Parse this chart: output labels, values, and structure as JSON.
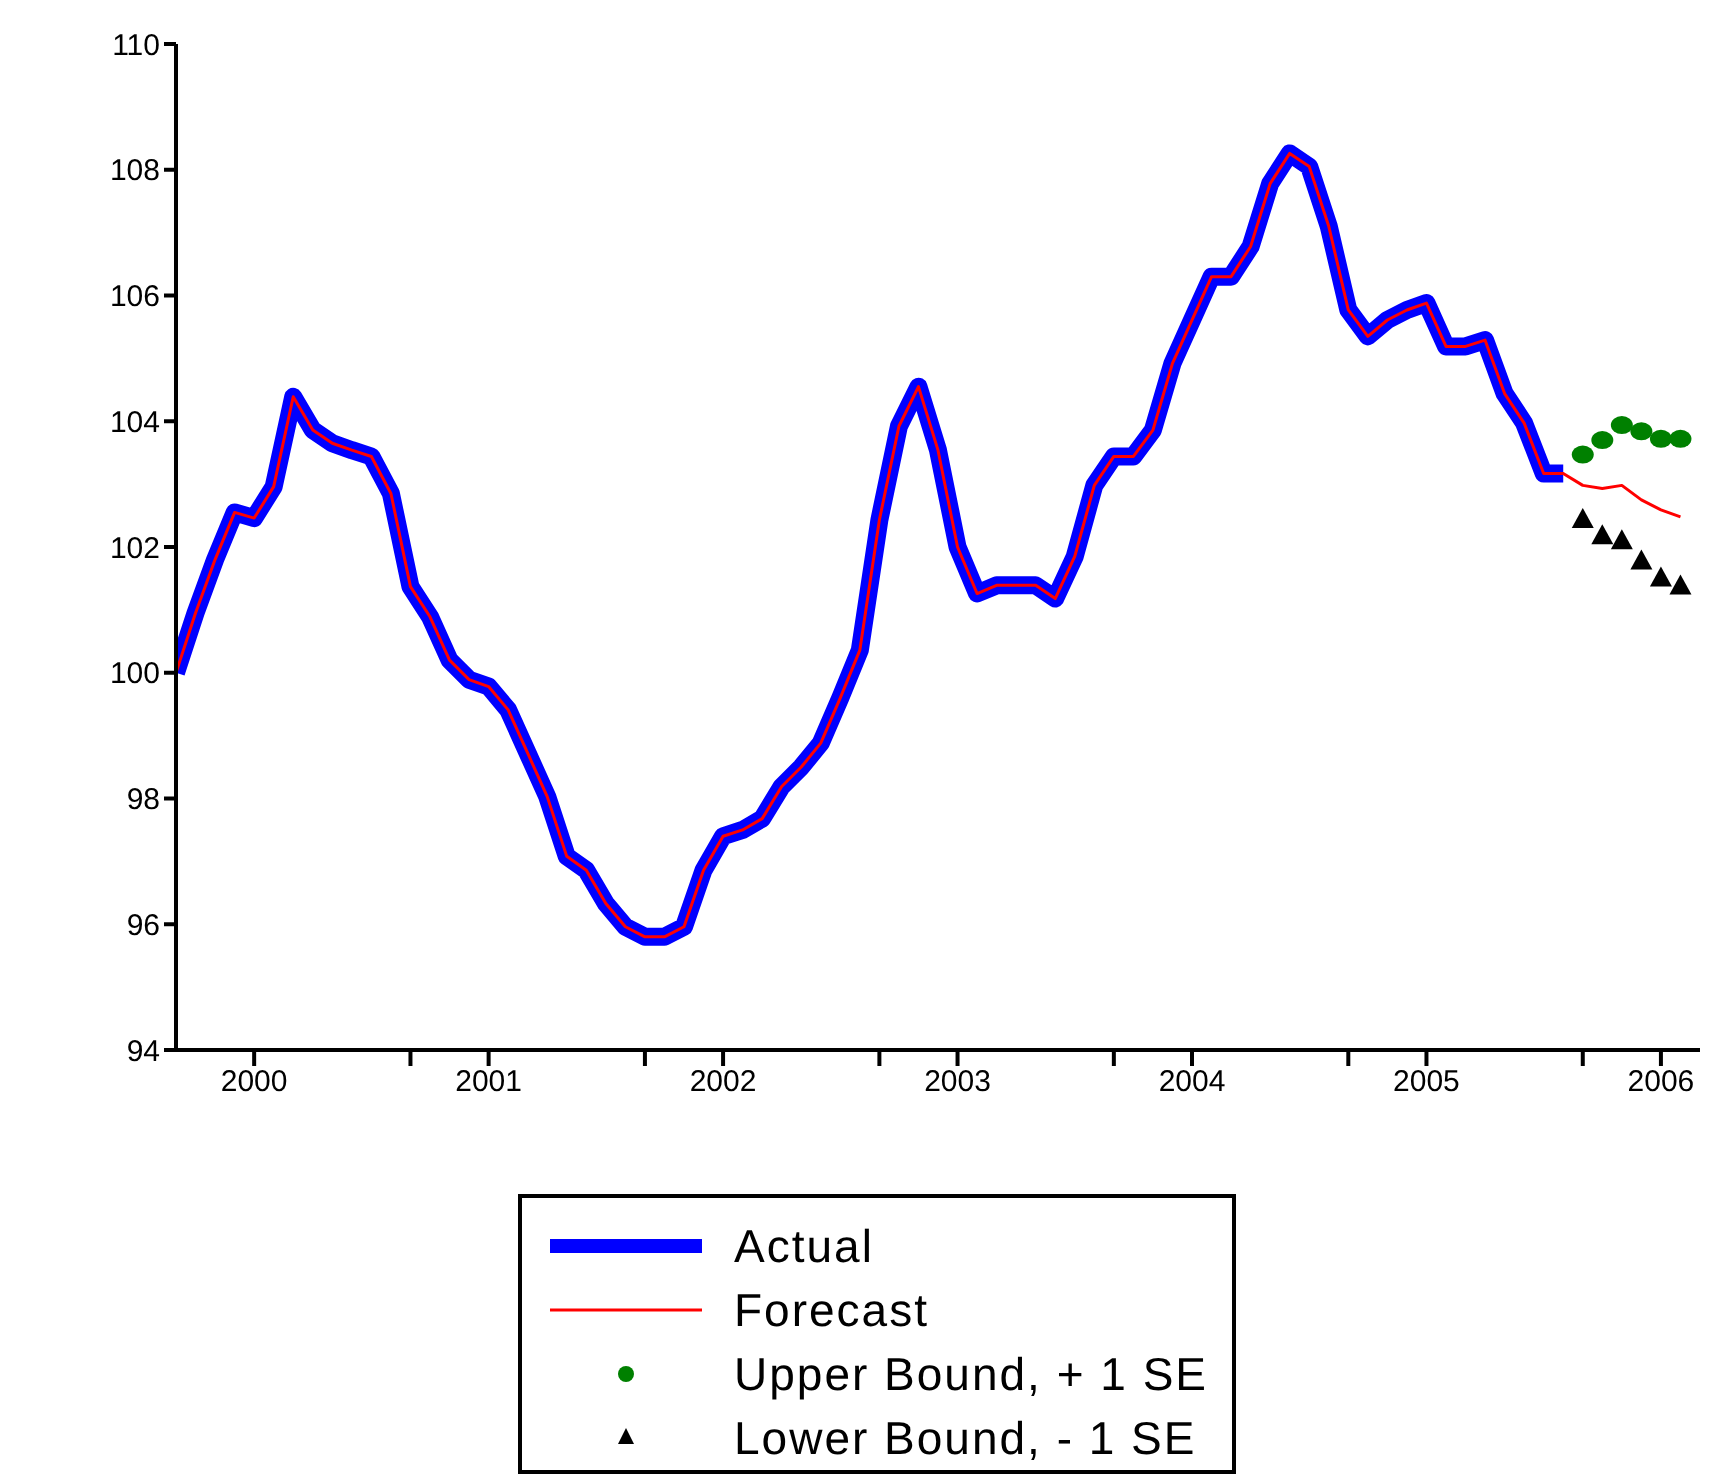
{
  "chart_data": {
    "type": "line",
    "x": [
      "2000-01",
      "2000-02",
      "2000-03",
      "2000-04",
      "2000-05",
      "2000-06",
      "2000-07",
      "2000-08",
      "2000-09",
      "2000-10",
      "2000-11",
      "2000-12",
      "2001-01",
      "2001-02",
      "2001-03",
      "2001-04",
      "2001-05",
      "2001-06",
      "2001-07",
      "2001-08",
      "2001-09",
      "2001-10",
      "2001-11",
      "2001-12",
      "2002-01",
      "2002-02",
      "2002-03",
      "2002-04",
      "2002-05",
      "2002-06",
      "2002-07",
      "2002-08",
      "2002-09",
      "2002-10",
      "2002-11",
      "2002-12",
      "2003-01",
      "2003-02",
      "2003-03",
      "2003-04",
      "2003-05",
      "2003-06",
      "2003-07",
      "2003-08",
      "2003-09",
      "2003-10",
      "2003-11",
      "2003-12",
      "2004-01",
      "2004-02",
      "2004-03",
      "2004-04",
      "2004-05",
      "2004-06",
      "2004-07",
      "2004-08",
      "2004-09",
      "2004-10",
      "2004-11",
      "2004-12",
      "2005-01",
      "2005-02",
      "2005-03",
      "2005-04",
      "2005-05",
      "2005-06",
      "2005-07",
      "2005-08",
      "2005-09",
      "2005-10",
      "2005-11",
      "2005-12",
      "2006-01",
      "2006-02",
      "2006-03",
      "2006-04",
      "2006-05",
      "2006-06"
    ],
    "series": [
      {
        "name": "Actual",
        "color": "#0000ff",
        "values": [
          100.0,
          100.95,
          101.8,
          102.55,
          102.46,
          102.96,
          104.39,
          103.86,
          103.65,
          103.54,
          103.44,
          102.85,
          101.37,
          100.89,
          100.2,
          99.89,
          99.78,
          99.41,
          98.72,
          98.03,
          97.08,
          96.86,
          96.33,
          95.96,
          95.8,
          95.8,
          95.96,
          96.86,
          97.4,
          97.5,
          97.68,
          98.19,
          98.5,
          98.88,
          99.6,
          100.36,
          102.43,
          103.92,
          104.55,
          103.54,
          102.0,
          101.26,
          101.39,
          101.39,
          101.39,
          101.18,
          101.85,
          102.98,
          103.44,
          103.44,
          103.86,
          104.92,
          105.61,
          106.3,
          106.3,
          106.78,
          107.78,
          108.26,
          108.05,
          107.1,
          105.77,
          105.35,
          105.61,
          105.77,
          105.88,
          105.19,
          105.19,
          105.29,
          104.44,
          103.97,
          103.17,
          103.17,
          null,
          null,
          null,
          null,
          null,
          null
        ]
      },
      {
        "name": "Forecast",
        "color": "#ff0000",
        "values": [
          100.0,
          100.95,
          101.8,
          102.55,
          102.46,
          102.96,
          104.39,
          103.86,
          103.65,
          103.54,
          103.44,
          102.85,
          101.37,
          100.89,
          100.2,
          99.89,
          99.78,
          99.41,
          98.72,
          98.03,
          97.08,
          96.86,
          96.33,
          95.96,
          95.8,
          95.8,
          95.96,
          96.86,
          97.4,
          97.5,
          97.68,
          98.19,
          98.5,
          98.88,
          99.6,
          100.36,
          102.43,
          103.92,
          104.55,
          103.54,
          102.0,
          101.26,
          101.39,
          101.39,
          101.39,
          101.18,
          101.85,
          102.98,
          103.44,
          103.44,
          103.86,
          104.92,
          105.61,
          106.3,
          106.3,
          106.78,
          107.78,
          108.26,
          108.05,
          107.1,
          105.77,
          105.35,
          105.61,
          105.77,
          105.88,
          105.19,
          105.19,
          105.29,
          104.44,
          103.97,
          103.17,
          103.17,
          102.98,
          102.93,
          102.98,
          102.75,
          102.59,
          102.48
        ]
      },
      {
        "name": "Upper Bound, + 1 SE",
        "type": "scatter",
        "marker": "circle",
        "color": "#008000",
        "x": [
          "2006-01",
          "2006-02",
          "2006-03",
          "2006-04",
          "2006-05",
          "2006-06"
        ],
        "values": [
          103.47,
          103.7,
          103.94,
          103.84,
          103.72,
          103.72
        ]
      },
      {
        "name": "Lower Bound, - 1 SE",
        "type": "scatter",
        "marker": "triangle",
        "color": "#000000",
        "x": [
          "2006-01",
          "2006-02",
          "2006-03",
          "2006-04",
          "2006-05",
          "2006-06"
        ],
        "values": [
          102.43,
          102.17,
          102.09,
          101.77,
          101.5,
          101.37
        ]
      }
    ],
    "xlim": [
      "2000-01",
      "2006-07"
    ],
    "xticks": [
      {
        "value": "2000-05",
        "label": "2000"
      },
      {
        "value": "2001-01",
        "label": null
      },
      {
        "value": "2001-05",
        "label": "2001"
      },
      {
        "value": "2002-01",
        "label": null
      },
      {
        "value": "2002-05",
        "label": "2002"
      },
      {
        "value": "2003-01",
        "label": null
      },
      {
        "value": "2003-05",
        "label": "2003"
      },
      {
        "value": "2004-01",
        "label": null
      },
      {
        "value": "2004-05",
        "label": "2004"
      },
      {
        "value": "2005-01",
        "label": null
      },
      {
        "value": "2005-05",
        "label": "2005"
      },
      {
        "value": "2006-01",
        "label": null
      },
      {
        "value": "2006-05",
        "label": "2006"
      }
    ],
    "ylim": [
      94,
      110
    ],
    "yticks": [
      94,
      96,
      98,
      100,
      102,
      104,
      106,
      108,
      110
    ],
    "grid": false,
    "legend": "bottom"
  }
}
